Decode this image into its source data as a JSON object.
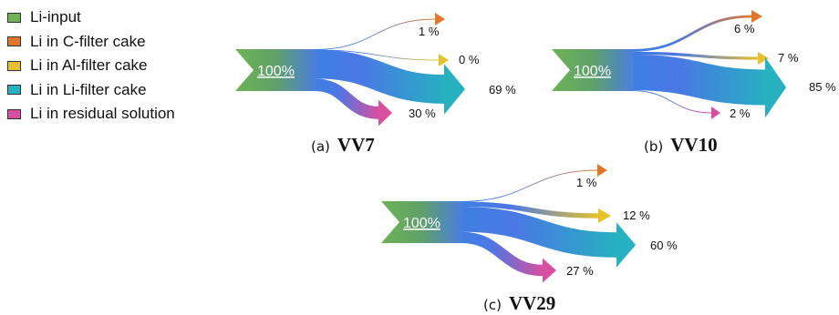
{
  "legend": [
    {
      "label": "Li-input",
      "color": "#6db356"
    },
    {
      "label": "Li in C-filter cake",
      "color": "#e0782b"
    },
    {
      "label": "Li in Al-filter cake",
      "color": "#e8c22e"
    },
    {
      "label": "Li in Li-filter cake",
      "color": "#26b0c0"
    },
    {
      "label": "Li in residual solution",
      "color": "#d94f9f"
    }
  ],
  "diagrams": [
    {
      "caption_prefix": "(a)",
      "caption_name": "VV7",
      "input_label": "100%",
      "flows": [
        {
          "label": "1 %",
          "value": 1,
          "color": "#e0782b"
        },
        {
          "label": "0 %",
          "value": 0,
          "color": "#e8c22e"
        },
        {
          "label": "69 %",
          "value": 69,
          "color": "#26b0c0"
        },
        {
          "label": "30 %",
          "value": 30,
          "color": "#d94f9f"
        }
      ]
    },
    {
      "caption_prefix": "(b)",
      "caption_name": "VV10",
      "input_label": "100%",
      "flows": [
        {
          "label": "6 %",
          "value": 6,
          "color": "#e0782b"
        },
        {
          "label": "7 %",
          "value": 7,
          "color": "#e8c22e"
        },
        {
          "label": "85 %",
          "value": 85,
          "color": "#26b0c0"
        },
        {
          "label": "2 %",
          "value": 2,
          "color": "#d94f9f"
        }
      ]
    },
    {
      "caption_prefix": "(c)",
      "caption_name": "VV29",
      "input_label": "100%",
      "flows": [
        {
          "label": "1 %",
          "value": 1,
          "color": "#e0782b"
        },
        {
          "label": "12 %",
          "value": 12,
          "color": "#e8c22e"
        },
        {
          "label": "60 %",
          "value": 60,
          "color": "#26b0c0"
        },
        {
          "label": "27 %",
          "value": 27,
          "color": "#d94f9f"
        }
      ]
    }
  ]
}
